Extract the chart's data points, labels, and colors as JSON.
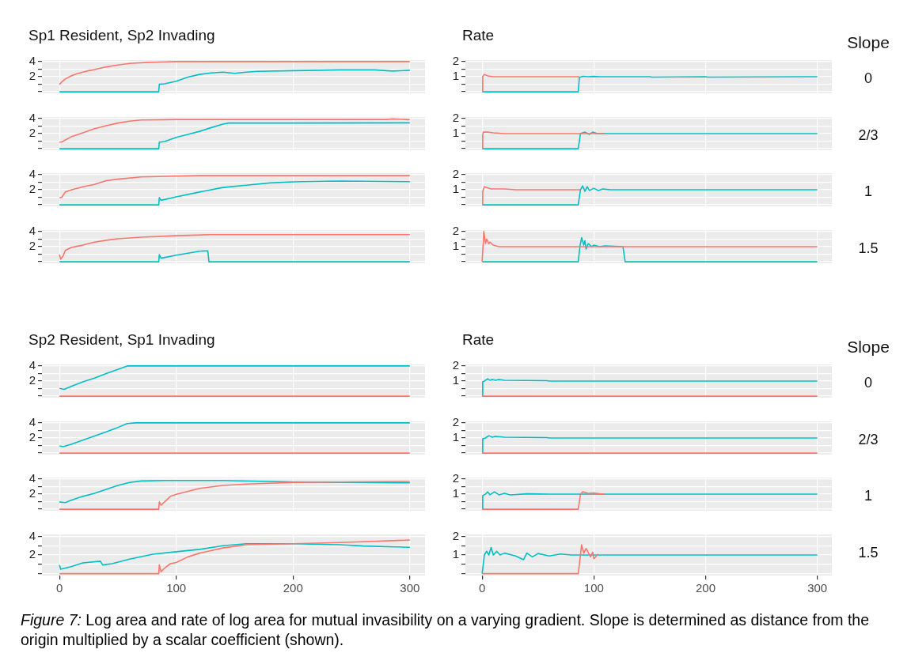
{
  "chart_data": [
    {
      "type": "line",
      "title": "Sp1 Resident, Sp2 Invading",
      "xlim": [
        -15,
        313
      ],
      "xticks": [
        0,
        100,
        200,
        300
      ],
      "ylim": [
        -0.2,
        4.2
      ],
      "yticks": [
        {
          "value": 0,
          "label": null
        },
        {
          "value": 1,
          "label": null
        },
        2,
        {
          "value": 3,
          "label": null
        },
        4
      ],
      "grid": true,
      "tick_labels": "y",
      "series": [
        {
          "color": "#f8766d",
          "x": [
            0,
            2,
            5,
            10,
            15,
            20,
            25,
            30,
            40,
            50,
            60,
            75,
            90,
            100,
            300
          ],
          "values": [
            0.97,
            1.3,
            1.7,
            2.1,
            2.4,
            2.6,
            2.8,
            2.95,
            3.3,
            3.55,
            3.75,
            3.9,
            3.97,
            4.0,
            4.0
          ]
        },
        {
          "color": "#00bfc4",
          "x": [
            0,
            85,
            85.5,
            90,
            100,
            110,
            120,
            130,
            140,
            150,
            160,
            170,
            200,
            240,
            270,
            285,
            300
          ],
          "values": [
            0,
            0,
            1.0,
            1.05,
            1.4,
            1.95,
            2.3,
            2.5,
            2.6,
            2.45,
            2.6,
            2.7,
            2.8,
            2.9,
            2.9,
            2.75,
            2.85
          ]
        }
      ]
    },
    {
      "type": "line",
      "title": "Rate",
      "annotations": [
        "Slope",
        "0"
      ],
      "xlim": [
        -15,
        313
      ],
      "xticks": [
        0,
        100,
        200,
        300
      ],
      "ylim": [
        -0.1,
        2.1
      ],
      "yticks": [
        {
          "value": 0,
          "label": null
        },
        {
          "value": 0.5,
          "label": null
        },
        1,
        {
          "value": 1.5,
          "label": null
        },
        2
      ],
      "grid": true,
      "tick_labels": "y",
      "series": [
        {
          "color": "#f8766d",
          "x": [
            0,
            0.5,
            2,
            5,
            10,
            87
          ],
          "values": [
            0,
            1,
            1.15,
            1.05,
            1.0,
            1.0
          ]
        },
        {
          "color": "#00bfc4",
          "x": [
            0,
            86,
            87,
            90,
            95,
            100,
            105,
            150,
            152,
            200,
            202,
            300
          ],
          "values": [
            0,
            0,
            0.95,
            1.03,
            1.0,
            1.02,
            1.0,
            1.0,
            0.97,
            1.0,
            0.97,
            1.0
          ]
        }
      ]
    },
    {
      "type": "line",
      "xlim": [
        -15,
        313
      ],
      "xticks": [
        0,
        100,
        200,
        300
      ],
      "ylim": [
        -0.2,
        4.2
      ],
      "yticks": [
        {
          "value": 0,
          "label": null
        },
        {
          "value": 1,
          "label": null
        },
        2,
        {
          "value": 3,
          "label": null
        },
        4
      ],
      "grid": true,
      "tick_labels": "y",
      "series": [
        {
          "color": "#f8766d",
          "x": [
            0,
            2,
            10,
            20,
            30,
            40,
            50,
            60,
            70,
            90,
            100,
            280,
            285,
            300
          ],
          "values": [
            0.86,
            0.9,
            1.57,
            2.1,
            2.65,
            3.05,
            3.4,
            3.65,
            3.8,
            3.85,
            3.87,
            3.87,
            3.95,
            3.85
          ]
        },
        {
          "color": "#00bfc4",
          "x": [
            0,
            85,
            85.5,
            90,
            100,
            110,
            120,
            130,
            140,
            145,
            200,
            300
          ],
          "values": [
            0,
            0,
            0.86,
            0.95,
            1.5,
            1.9,
            2.3,
            2.8,
            3.25,
            3.4,
            3.4,
            3.43
          ]
        }
      ]
    },
    {
      "type": "line",
      "annotations": [
        "2/3"
      ],
      "xlim": [
        -15,
        313
      ],
      "xticks": [
        0,
        100,
        200,
        300
      ],
      "ylim": [
        -0.1,
        2.1
      ],
      "yticks": [
        {
          "value": 0,
          "label": null
        },
        {
          "value": 0.5,
          "label": null
        },
        1,
        {
          "value": 1.5,
          "label": null
        },
        2
      ],
      "grid": true,
      "tick_labels": "y",
      "series": [
        {
          "color": "#f8766d",
          "x": [
            0,
            0.5,
            1,
            5,
            10,
            20,
            110
          ],
          "values": [
            0,
            0.9,
            1.1,
            1.1,
            1.05,
            1.0,
            1.0
          ]
        },
        {
          "color": "#00bfc4",
          "x": [
            0,
            86,
            88,
            92,
            96,
            99,
            103,
            300
          ],
          "values": [
            0,
            0,
            1.0,
            1.1,
            0.95,
            1.1,
            1.0,
            1.0
          ]
        }
      ]
    },
    {
      "type": "line",
      "xlim": [
        -15,
        313
      ],
      "xticks": [
        0,
        100,
        200,
        300
      ],
      "ylim": [
        -0.2,
        4.2
      ],
      "yticks": [
        {
          "value": 0,
          "label": null
        },
        {
          "value": 1,
          "label": null
        },
        2,
        {
          "value": 3,
          "label": null
        },
        4
      ],
      "grid": true,
      "tick_labels": "y",
      "series": [
        {
          "color": "#f8766d",
          "x": [
            0,
            2,
            5,
            10,
            20,
            25,
            30,
            40,
            50,
            70,
            100,
            120,
            300
          ],
          "values": [
            0.92,
            1.0,
            1.7,
            1.97,
            2.4,
            2.55,
            2.7,
            3.2,
            3.4,
            3.7,
            3.8,
            3.87,
            3.87
          ]
        },
        {
          "color": "#00bfc4",
          "x": [
            0,
            85,
            85.5,
            87,
            100,
            120,
            140,
            160,
            180,
            200,
            240,
            300
          ],
          "values": [
            0,
            0,
            0.97,
            0.6,
            1.05,
            1.7,
            2.3,
            2.6,
            2.9,
            3.05,
            3.15,
            3.07
          ]
        }
      ]
    },
    {
      "type": "line",
      "annotations": [
        "1"
      ],
      "xlim": [
        -15,
        313
      ],
      "xticks": [
        0,
        100,
        200,
        300
      ],
      "ylim": [
        -0.1,
        2.1
      ],
      "yticks": [
        {
          "value": 0,
          "label": null
        },
        {
          "value": 0.5,
          "label": null
        },
        1,
        {
          "value": 1.5,
          "label": null
        },
        2
      ],
      "grid": true,
      "tick_labels": "y",
      "series": [
        {
          "color": "#f8766d",
          "x": [
            0,
            0.5,
            2,
            8,
            20,
            30,
            88
          ],
          "values": [
            0,
            0.9,
            1.2,
            1.05,
            1.05,
            1.0,
            1.0
          ]
        },
        {
          "color": "#00bfc4",
          "x": [
            0,
            86,
            88,
            90,
            92,
            94,
            96,
            100,
            104,
            108,
            115,
            300
          ],
          "values": [
            0,
            0,
            1.0,
            1.25,
            0.9,
            1.2,
            0.95,
            1.1,
            0.95,
            1.05,
            1.0,
            1.0
          ]
        }
      ]
    },
    {
      "type": "line",
      "xlim": [
        -15,
        313
      ],
      "xticks": [
        0,
        100,
        200,
        300
      ],
      "ylim": [
        -0.2,
        4.2
      ],
      "yticks": [
        {
          "value": 0,
          "label": null
        },
        {
          "value": 1,
          "label": null
        },
        2,
        {
          "value": 3,
          "label": null
        },
        4
      ],
      "grid": true,
      "tick_labels": "y",
      "series": [
        {
          "color": "#f8766d",
          "x": [
            0,
            1,
            3,
            5,
            10,
            20,
            30,
            40,
            50,
            70,
            100,
            130,
            300
          ],
          "values": [
            0.95,
            0.35,
            0.75,
            1.5,
            1.9,
            2.2,
            2.6,
            2.85,
            3.05,
            3.25,
            3.45,
            3.6,
            3.6
          ]
        },
        {
          "color": "#00bfc4",
          "x": [
            0,
            85,
            85.5,
            87,
            100,
            110,
            120,
            127,
            128,
            300
          ],
          "values": [
            0,
            0,
            0.95,
            0.47,
            0.87,
            1.13,
            1.4,
            1.45,
            0,
            0
          ]
        }
      ]
    },
    {
      "type": "line",
      "annotations": [
        "1.5"
      ],
      "xlim": [
        -15,
        313
      ],
      "xticks": [
        0,
        100,
        200,
        300
      ],
      "ylim": [
        -0.1,
        2.1
      ],
      "yticks": [
        {
          "value": 0,
          "label": null
        },
        {
          "value": 0.5,
          "label": null
        },
        1,
        {
          "value": 1.5,
          "label": null
        },
        2
      ],
      "grid": true,
      "tick_labels": "y",
      "series": [
        {
          "color": "#f8766d",
          "x": [
            0,
            1.5,
            3,
            4,
            6,
            7,
            10,
            15,
            300
          ],
          "values": [
            0,
            2.0,
            1.2,
            1.5,
            1.2,
            1.3,
            1.1,
            1.0,
            1.0
          ]
        },
        {
          "color": "#00bfc4",
          "x": [
            0,
            86,
            87.5,
            89,
            91,
            92,
            93,
            95,
            98,
            100,
            105,
            110,
            126,
            128,
            300
          ],
          "values": [
            0,
            0,
            1.0,
            1.6,
            1.1,
            1.4,
            0.85,
            1.2,
            1.0,
            1.1,
            1.0,
            1.05,
            1.0,
            0,
            0
          ]
        }
      ]
    },
    {
      "type": "line",
      "title": "Sp2 Resident, Sp1 Invading",
      "xlim": [
        -15,
        313
      ],
      "xticks": [
        0,
        100,
        200,
        300
      ],
      "ylim": [
        -0.2,
        4.2
      ],
      "yticks": [
        {
          "value": 0,
          "label": null
        },
        {
          "value": 1,
          "label": null
        },
        2,
        {
          "value": 3,
          "label": null
        },
        4
      ],
      "grid": true,
      "tick_labels": "y",
      "series": [
        {
          "color": "#f8766d",
          "x": [
            0,
            300
          ],
          "values": [
            0,
            0
          ]
        },
        {
          "color": "#00bfc4",
          "x": [
            0,
            4,
            10,
            20,
            30,
            40,
            50,
            58,
            300
          ],
          "values": [
            1.03,
            0.9,
            1.3,
            1.9,
            2.4,
            3.0,
            3.55,
            4.0,
            4.0
          ]
        }
      ]
    },
    {
      "type": "line",
      "title": "Rate",
      "annotations": [
        "Slope",
        "0"
      ],
      "xlim": [
        -15,
        313
      ],
      "xticks": [
        0,
        100,
        200,
        300
      ],
      "ylim": [
        -0.1,
        2.1
      ],
      "yticks": [
        {
          "value": 0,
          "label": null
        },
        {
          "value": 0.5,
          "label": null
        },
        1,
        {
          "value": 1.5,
          "label": null
        },
        2
      ],
      "grid": true,
      "tick_labels": "y",
      "series": [
        {
          "color": "#f8766d",
          "x": [
            0,
            300
          ],
          "values": [
            0,
            0
          ]
        },
        {
          "color": "#00bfc4",
          "x": [
            0,
            0.5,
            2,
            5,
            7,
            9,
            12,
            15,
            20,
            58,
            60,
            300
          ],
          "values": [
            0,
            0.95,
            1.0,
            1.15,
            1.05,
            1.1,
            1.05,
            1.1,
            1.05,
            1.03,
            1.0,
            1.0
          ]
        }
      ]
    },
    {
      "type": "line",
      "xlim": [
        -15,
        313
      ],
      "xticks": [
        0,
        100,
        200,
        300
      ],
      "ylim": [
        -0.2,
        4.2
      ],
      "yticks": [
        {
          "value": 0,
          "label": null
        },
        {
          "value": 1,
          "label": null
        },
        2,
        {
          "value": 3,
          "label": null
        },
        4
      ],
      "grid": true,
      "tick_labels": "y",
      "series": [
        {
          "color": "#f8766d",
          "x": [
            0,
            300
          ],
          "values": [
            0,
            0
          ]
        },
        {
          "color": "#00bfc4",
          "x": [
            0,
            3,
            10,
            20,
            30,
            40,
            50,
            58,
            65,
            300
          ],
          "values": [
            0.95,
            0.84,
            1.16,
            1.7,
            2.25,
            2.8,
            3.4,
            3.92,
            4.0,
            4.0
          ]
        }
      ]
    },
    {
      "type": "line",
      "annotations": [
        "2/3"
      ],
      "xlim": [
        -15,
        313
      ],
      "xticks": [
        0,
        100,
        200,
        300
      ],
      "ylim": [
        -0.1,
        2.1
      ],
      "yticks": [
        {
          "value": 0,
          "label": null
        },
        {
          "value": 0.5,
          "label": null
        },
        1,
        {
          "value": 1.5,
          "label": null
        },
        2
      ],
      "grid": true,
      "tick_labels": "y",
      "series": [
        {
          "color": "#f8766d",
          "x": [
            0,
            300
          ],
          "values": [
            0,
            0
          ]
        },
        {
          "color": "#00bfc4",
          "x": [
            0,
            0.5,
            3,
            6,
            9,
            12,
            20,
            58,
            60,
            300
          ],
          "values": [
            0,
            0.95,
            1.0,
            1.15,
            1.05,
            1.1,
            1.05,
            1.03,
            1.0,
            1.0
          ]
        }
      ]
    },
    {
      "type": "line",
      "xlim": [
        -15,
        313
      ],
      "xticks": [
        0,
        100,
        200,
        300
      ],
      "ylim": [
        -0.2,
        4.2
      ],
      "yticks": [
        {
          "value": 0,
          "label": null
        },
        {
          "value": 1,
          "label": null
        },
        2,
        {
          "value": 3,
          "label": null
        },
        4
      ],
      "grid": true,
      "tick_labels": "y",
      "series": [
        {
          "color": "#f8766d",
          "x": [
            0,
            85,
            85.5,
            87,
            95,
            100,
            110,
            120,
            140,
            160,
            200,
            240,
            300
          ],
          "values": [
            0,
            0,
            0.97,
            0.53,
            1.7,
            1.97,
            2.37,
            2.76,
            3.15,
            3.34,
            3.55,
            3.6,
            3.68
          ]
        },
        {
          "color": "#00bfc4",
          "x": [
            0,
            5,
            10,
            20,
            30,
            40,
            50,
            60,
            70,
            90,
            140,
            180,
            200,
            300
          ],
          "values": [
            0.97,
            0.87,
            1.18,
            1.7,
            2.1,
            2.63,
            3.15,
            3.55,
            3.74,
            3.8,
            3.8,
            3.68,
            3.6,
            3.5
          ]
        }
      ]
    },
    {
      "type": "line",
      "annotations": [
        "1"
      ],
      "xlim": [
        -15,
        313
      ],
      "xticks": [
        0,
        100,
        200,
        300
      ],
      "ylim": [
        -0.1,
        2.1
      ],
      "yticks": [
        {
          "value": 0,
          "label": null
        },
        {
          "value": 0.5,
          "label": null
        },
        1,
        {
          "value": 1.5,
          "label": null
        },
        2
      ],
      "grid": true,
      "tick_labels": "y",
      "series": [
        {
          "color": "#f8766d",
          "x": [
            0,
            86,
            88,
            90,
            95,
            100,
            105,
            110
          ],
          "values": [
            0,
            0,
            1.0,
            1.15,
            1.05,
            1.08,
            1.02,
            1.0
          ]
        },
        {
          "color": "#00bfc4",
          "x": [
            0,
            0.5,
            3,
            5,
            7,
            11,
            15,
            20,
            25,
            40,
            60,
            300
          ],
          "values": [
            0,
            0.9,
            1.0,
            1.15,
            0.95,
            1.15,
            0.95,
            1.05,
            0.95,
            1.02,
            1.0,
            1.0
          ]
        }
      ]
    },
    {
      "type": "line",
      "annotations": [
        "Figure 7: Log area and rate of log area for mutual invasibility on a varying gradient. Slope is determined as distance from the origin multiplied by a scalar coefficient (shown)."
      ],
      "xlim": [
        -15,
        313
      ],
      "xticks": [
        0,
        100,
        200,
        300
      ],
      "ylim": [
        -0.2,
        4.2
      ],
      "yticks": [
        {
          "value": 0,
          "label": null
        },
        {
          "value": 1,
          "label": null
        },
        2,
        {
          "value": 3,
          "label": null
        },
        4
      ],
      "grid": true,
      "series": [
        {
          "color": "#f8766d",
          "x": [
            0,
            85,
            85.5,
            87,
            90,
            95,
            100,
            110,
            120,
            140,
            160,
            200,
            240,
            300
          ],
          "values": [
            0,
            0,
            0.93,
            0.2,
            0.6,
            1.07,
            1.2,
            1.8,
            2.2,
            2.75,
            3.1,
            3.2,
            3.33,
            3.6
          ]
        },
        {
          "color": "#00bfc4",
          "x": [
            0,
            1,
            10,
            20,
            35,
            37,
            45,
            60,
            80,
            100,
            120,
            140,
            160,
            200,
            240,
            260,
            300
          ],
          "values": [
            0.93,
            0.48,
            0.75,
            1.15,
            1.33,
            0.93,
            1.07,
            1.55,
            2.08,
            2.35,
            2.6,
            3.0,
            3.2,
            3.2,
            3.1,
            2.96,
            2.83
          ]
        }
      ]
    },
    {
      "type": "line",
      "annotations": [
        "1.5"
      ],
      "xlim": [
        -15,
        313
      ],
      "xticks": [
        0,
        100,
        200,
        300
      ],
      "ylim": [
        -0.1,
        2.1
      ],
      "yticks": [
        {
          "value": 0,
          "label": null
        },
        {
          "value": 0.5,
          "label": null
        },
        1,
        {
          "value": 1.5,
          "label": null
        },
        2
      ],
      "grid": true,
      "series": [
        {
          "color": "#f8766d",
          "x": [
            0,
            86,
            88,
            89,
            91,
            93,
            97,
            99,
            100,
            104
          ],
          "values": [
            0,
            0,
            1.0,
            1.55,
            1.1,
            1.35,
            0.9,
            1.15,
            0.8,
            1.05
          ]
        },
        {
          "color": "#00bfc4",
          "x": [
            0,
            2,
            4,
            6,
            8,
            10,
            13,
            16,
            20,
            30,
            37,
            40,
            45,
            50,
            60,
            70,
            80,
            300
          ],
          "values": [
            0,
            1.0,
            1.2,
            1.0,
            1.4,
            1.0,
            1.2,
            1.0,
            1.1,
            0.95,
            0.75,
            1.1,
            0.9,
            1.08,
            0.95,
            1.05,
            1.0,
            1.0
          ]
        }
      ]
    }
  ]
}
